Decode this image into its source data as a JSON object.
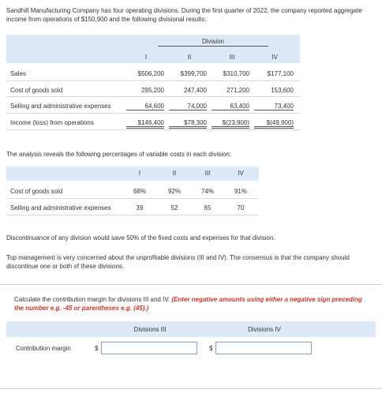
{
  "intro": "Sandhill Manufacturing Company has four operating divisions. During the first quarter of 2022, the company reported aggregate income from operations of $150,900 and the following divisional results:",
  "table1": {
    "group_header": "Division",
    "columns": [
      "I",
      "II",
      "III",
      "IV"
    ],
    "rows": [
      {
        "label": "Sales",
        "values": [
          "$506,200",
          "$399,700",
          "$310,700",
          "$177,100"
        ]
      },
      {
        "label": "Cost of goods sold",
        "values": [
          "295,200",
          "247,400",
          "271,200",
          "153,600"
        ]
      },
      {
        "label": "Selling and administrative expenses",
        "values": [
          "64,600",
          "74,000",
          "63,400",
          "73,400"
        ]
      },
      {
        "label": "Income (loss) from operations",
        "values": [
          "$146,400",
          "$78,300",
          "$(23,900)",
          "$(49,900)"
        ]
      }
    ]
  },
  "analysis_text": "The analysis reveals the following percentages of variable costs in each division:",
  "table2": {
    "columns": [
      "I",
      "II",
      "III",
      "IV"
    ],
    "rows": [
      {
        "label": "Cost of goods sold",
        "values": [
          "68%",
          "92%",
          "74%",
          "91%"
        ]
      },
      {
        "label": "Selling and administrative expenses",
        "values": [
          "39",
          "52",
          "65",
          "70"
        ]
      }
    ]
  },
  "para1": "Discontinuance of any division would save 50% of the fixed costs and expenses for that division.",
  "para2": "Top management is very concerned about the unprofitable divisions (III and IV). The consensus is that the company should discontinue one or both of these divisions.",
  "question": {
    "text": "Calculate the contribution margin for divisions III and IV.",
    "hint": "(Enter negative amounts using either a negative sign preceding the number e.g. -45 or parentheses e.g. (45).)",
    "col3_label": "Divisions III",
    "col4_label": "Divisions IV",
    "row_label": "Contribution margin",
    "currency": "$",
    "input3_value": "",
    "input4_value": ""
  }
}
